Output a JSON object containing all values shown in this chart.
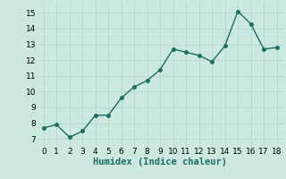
{
  "x": [
    0,
    1,
    2,
    3,
    4,
    5,
    6,
    7,
    8,
    9,
    10,
    11,
    12,
    13,
    14,
    15,
    16,
    17,
    18
  ],
  "y": [
    7.7,
    7.9,
    7.1,
    7.5,
    8.5,
    8.5,
    9.6,
    10.3,
    10.7,
    11.4,
    12.7,
    12.5,
    12.3,
    11.9,
    12.9,
    15.1,
    14.3,
    12.7,
    12.8
  ],
  "line_color": "#1a7060",
  "marker": "o",
  "marker_size": 2.5,
  "line_width": 1.0,
  "xlabel": "Humidex (Indice chaleur)",
  "xlim": [
    -0.5,
    18.5
  ],
  "ylim": [
    6.5,
    15.7
  ],
  "yticks": [
    7,
    8,
    9,
    10,
    11,
    12,
    13,
    14,
    15
  ],
  "xticks": [
    0,
    1,
    2,
    3,
    4,
    5,
    6,
    7,
    8,
    9,
    10,
    11,
    12,
    13,
    14,
    15,
    16,
    17,
    18
  ],
  "bg_color": "#cce8e0",
  "grid_color": "#b8d8d0",
  "tick_fontsize": 6.5,
  "label_fontsize": 7.5
}
